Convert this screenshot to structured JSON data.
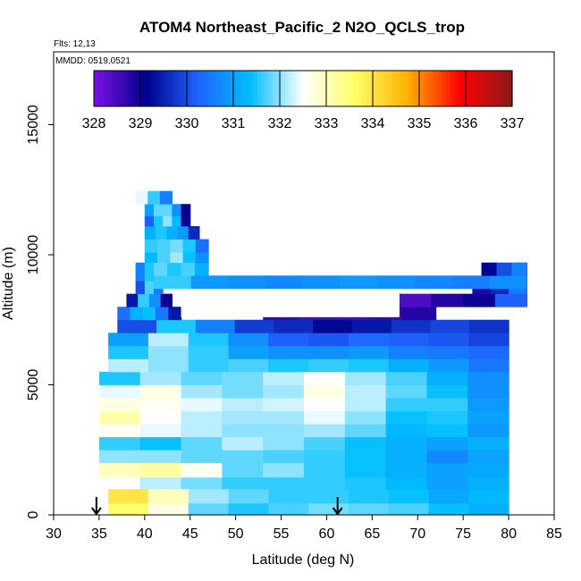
{
  "chart_data": {
    "type": "heatmap",
    "title": "ATOM4 Northeast_Pacific_2 N2O_QCLS_trop",
    "flights_label": "Flts: 12,13",
    "mmdd_label": "MMDD: 0519,0521",
    "xlabel": "Latitude (deg N)",
    "ylabel": "Altitude (m)",
    "xlim": [
      30,
      85
    ],
    "ylim": [
      0,
      17800
    ],
    "xticks": [
      "30",
      "35",
      "40",
      "45",
      "50",
      "55",
      "60",
      "65",
      "70",
      "75",
      "80",
      "85"
    ],
    "yticks": [
      "0",
      "5000",
      "10000",
      "15000"
    ],
    "colorbar": {
      "min": 328,
      "max": 337,
      "tick_labels": [
        "328",
        "329",
        "330",
        "331",
        "332",
        "333",
        "334",
        "335",
        "336",
        "337"
      ],
      "colors": [
        "#7a12e6",
        "#00008b",
        "#1e64ff",
        "#00bfff",
        "#ffffff",
        "#ffff66",
        "#ffb000",
        "#ff0000",
        "#8b1a1a"
      ]
    },
    "arrows_at_latitude": [
      34.7,
      61.2
    ],
    "bands": [
      {
        "y0": 0,
        "y1": 450,
        "lat0": 36,
        "lat1": 80,
        "values": [
          333.6,
          332.7,
          331.8,
          331.5,
          331.7,
          331.9,
          331.8,
          331.7,
          331.4,
          331.2
        ]
      },
      {
        "y0": 450,
        "y1": 1000,
        "lat0": 36,
        "lat1": 80,
        "values": [
          334.0,
          333.0,
          332.1,
          331.8,
          331.6,
          331.6,
          331.5,
          331.4,
          331.1,
          331.3
        ]
      },
      {
        "y0": 1000,
        "y1": 1450,
        "lat0": 35,
        "lat1": 80,
        "values": [
          332.5,
          332.2,
          331.9,
          331.6,
          331.6,
          331.6,
          331.5,
          331.3,
          331.0,
          331.2
        ]
      },
      {
        "y0": 1450,
        "y1": 2000,
        "lat0": 35,
        "lat1": 80,
        "values": [
          333.0,
          333.2,
          332.6,
          331.8,
          332.0,
          331.6,
          331.4,
          331.2,
          331.0,
          331.1
        ]
      },
      {
        "y0": 2000,
        "y1": 2500,
        "lat0": 35,
        "lat1": 80,
        "values": [
          332.0,
          332.0,
          331.8,
          331.8,
          331.7,
          331.6,
          331.4,
          331.2,
          330.7,
          331.0
        ]
      },
      {
        "y0": 2500,
        "y1": 3000,
        "lat0": 35,
        "lat1": 80,
        "values": [
          331.6,
          331.4,
          331.8,
          332.2,
          332.0,
          331.7,
          331.4,
          331.2,
          331.0,
          331.2
        ]
      },
      {
        "y0": 3000,
        "y1": 3500,
        "lat0": 35,
        "lat1": 80,
        "values": [
          332.6,
          332.4,
          332.2,
          332.0,
          332.0,
          332.1,
          331.8,
          331.3,
          331.4,
          330.9
        ]
      },
      {
        "y0": 3500,
        "y1": 4000,
        "lat0": 35,
        "lat1": 80,
        "values": [
          333.1,
          332.5,
          332.2,
          332.1,
          332.1,
          332.4,
          332.0,
          331.4,
          331.5,
          331.0
        ]
      },
      {
        "y0": 4000,
        "y1": 4500,
        "lat0": 35,
        "lat1": 80,
        "values": [
          332.7,
          332.6,
          332.4,
          332.2,
          332.3,
          332.5,
          332.2,
          331.6,
          331.6,
          330.9
        ]
      },
      {
        "y0": 4500,
        "y1": 5000,
        "lat0": 35,
        "lat1": 80,
        "values": [
          332.4,
          332.7,
          332.1,
          331.9,
          332.1,
          332.7,
          332.2,
          331.8,
          331.4,
          330.8
        ]
      },
      {
        "y0": 5000,
        "y1": 5500,
        "lat0": 35,
        "lat1": 80,
        "values": [
          331.5,
          332.1,
          331.8,
          331.9,
          332.2,
          332.5,
          332.1,
          331.7,
          331.2,
          330.8
        ]
      },
      {
        "y0": 5500,
        "y1": 6000,
        "lat0": 36,
        "lat1": 80,
        "values": [
          332.2,
          332.0,
          331.6,
          331.7,
          331.5,
          331.6,
          331.5,
          331.2,
          330.9,
          330.5
        ]
      },
      {
        "y0": 6000,
        "y1": 6500,
        "lat0": 36,
        "lat1": 80,
        "values": [
          331.5,
          332.0,
          331.6,
          331.0,
          330.8,
          330.8,
          330.9,
          330.6,
          330.5,
          330.3
        ]
      },
      {
        "y0": 6500,
        "y1": 7000,
        "lat0": 36,
        "lat1": 80,
        "values": [
          331.0,
          332.2,
          331.5,
          330.8,
          330.2,
          330.1,
          330.3,
          330.2,
          330.1,
          329.9
        ]
      },
      {
        "y0": 7000,
        "y1": 7500,
        "lat0": 37,
        "lat1": 80,
        "values": [
          330.0,
          331.5,
          330.6,
          329.8,
          329.6,
          329.2,
          329.4,
          329.7,
          329.9,
          329.7
        ]
      },
      {
        "y0": 7500,
        "y1": 8000,
        "lat0": 37,
        "lat1": 44,
        "values": [
          330.4,
          331.2,
          331.4,
          330.5,
          329.4
        ]
      },
      {
        "y0": 7500,
        "y1": 8000,
        "lat0": 53,
        "lat1": 72,
        "values": [
          328.6,
          328.5,
          328.5,
          328.6,
          328.8
        ]
      },
      {
        "y0": 8000,
        "y1": 8500,
        "lat0": 38,
        "lat1": 43,
        "values": [
          329.4,
          331.6,
          330.8,
          329.0
        ]
      },
      {
        "y0": 8000,
        "y1": 8500,
        "lat0": 68,
        "lat1": 82,
        "values": [
          328.4,
          328.8,
          329.0,
          330.2
        ]
      },
      {
        "y0": 8500,
        "y1": 9000,
        "lat0": 39,
        "lat1": 42,
        "values": [
          330.0,
          331.7,
          330.6
        ]
      },
      {
        "y0": 8500,
        "y1": 9000,
        "lat0": 76,
        "lat1": 82,
        "values": [
          328.8,
          329.6,
          330.5
        ]
      },
      {
        "y0": 9000,
        "y1": 9700,
        "lat0": 39,
        "lat1": 42,
        "values": [
          330.6,
          331.5,
          331.3
        ]
      },
      {
        "y0": 9000,
        "y1": 9700,
        "lat0": 81,
        "lat1": 82,
        "values": [
          330.0
        ]
      },
      {
        "y0": 8700,
        "y1": 9200,
        "lat0": 41,
        "lat1": 82,
        "values": [
          331.6,
          330.9,
          330.8,
          330.7,
          330.8,
          330.9,
          330.8,
          330.7,
          330.6,
          330.8
        ]
      },
      {
        "y0": 9200,
        "y1": 9700,
        "lat0": 77,
        "lat1": 82,
        "values": [
          329.2,
          330.0,
          330.6
        ]
      },
      {
        "y0": 9200,
        "y1": 9700,
        "lat0": 41,
        "lat1": 47,
        "values": [
          331.8,
          331.5,
          331.7,
          331.2
        ]
      },
      {
        "y0": 9700,
        "y1": 10100,
        "lat0": 40,
        "lat1": 47,
        "values": [
          331.3,
          331.7,
          332.1,
          331.4,
          330.8
        ]
      },
      {
        "y0": 10100,
        "y1": 10600,
        "lat0": 40,
        "lat1": 47,
        "values": [
          331.6,
          331.7,
          331.9,
          331.5,
          330.4
        ]
      },
      {
        "y0": 10600,
        "y1": 11100,
        "lat0": 40,
        "lat1": 46,
        "values": [
          331.2,
          331.5,
          331.2,
          330.9,
          329.6
        ]
      },
      {
        "y0": 11100,
        "y1": 11500,
        "lat0": 40,
        "lat1": 45,
        "values": [
          330.2,
          331.5,
          332.0,
          331.3,
          329.0
        ]
      },
      {
        "y0": 11500,
        "y1": 11950,
        "lat0": 40,
        "lat1": 45,
        "values": [
          331.0,
          331.8,
          331.8,
          330.8,
          329.1
        ]
      },
      {
        "y0": 11950,
        "y1": 12450,
        "lat0": 39,
        "lat1": 43,
        "values": [
          332.4,
          331.6,
          330.6
        ]
      }
    ],
    "white_gap": {
      "y0": 7600,
      "y1": 8500,
      "lat0": 44,
      "lat1": 68
    }
  }
}
